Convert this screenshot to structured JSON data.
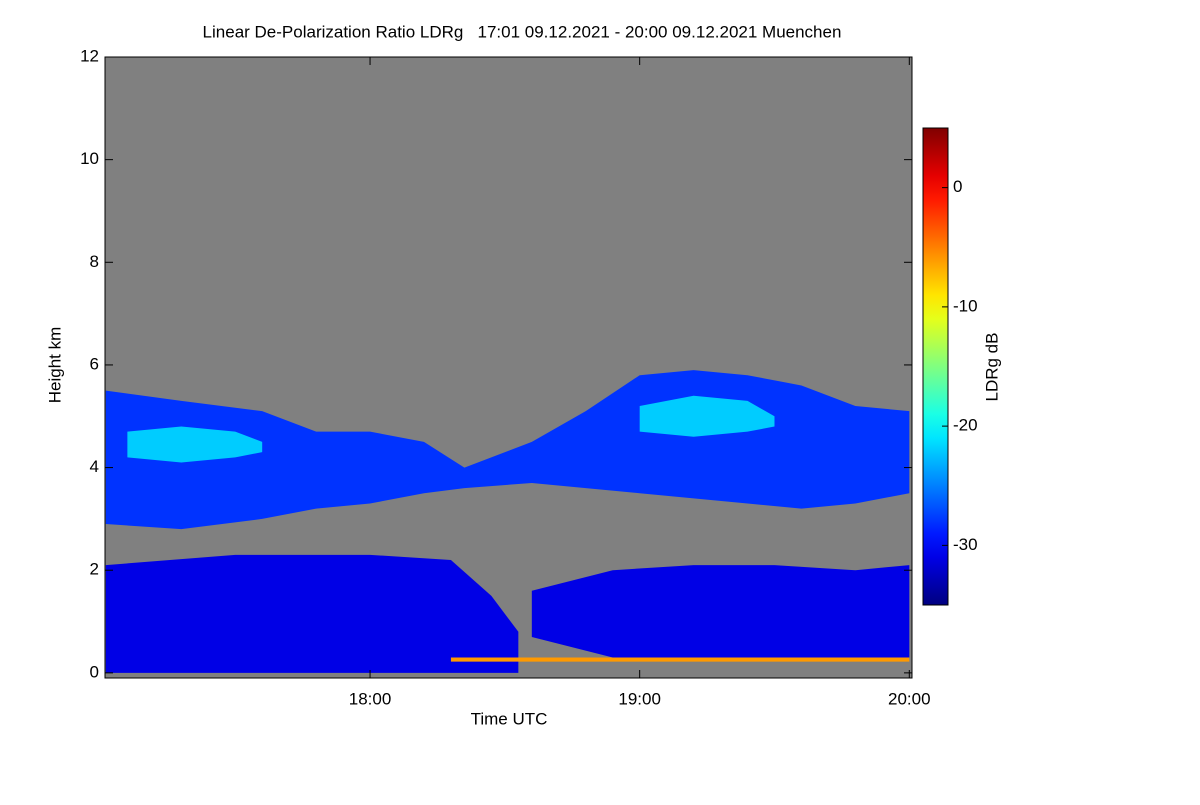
{
  "chart_data": {
    "type": "heatmap",
    "title": "Linear De-Polarization Ratio LDRg   17:01 09.12.2021 - 20:00 09.12.2021 Muenchen",
    "x_label": "Time UTC",
    "y_label": "Height km",
    "colorbar_label": "LDRg dB",
    "xlim": [
      17.017,
      20.01
    ],
    "xticks": [
      {
        "value": 18,
        "label": "18:00"
      },
      {
        "value": 19,
        "label": "19:00"
      },
      {
        "value": 20,
        "label": "20:00"
      }
    ],
    "ylim": [
      -0.1,
      12
    ],
    "yticks": [
      0,
      2,
      4,
      6,
      8,
      10,
      12
    ],
    "clim": [
      -35,
      5
    ],
    "cticks": [
      0,
      -10,
      -20,
      -30
    ],
    "colormap": "jet",
    "background": "#808080",
    "layers": [
      {
        "x": [
          17.02,
          17.3,
          17.6,
          17.8,
          18.0,
          18.2,
          18.35,
          18.6,
          18.8,
          19.0,
          19.2,
          19.4,
          19.6,
          19.8,
          20.0
        ],
        "top": [
          5.5,
          5.3,
          5.1,
          4.7,
          4.7,
          4.5,
          4.0,
          4.5,
          5.1,
          5.8,
          5.9,
          5.8,
          5.6,
          5.2,
          5.1
        ],
        "bottom": [
          2.9,
          2.8,
          3.0,
          3.2,
          3.3,
          3.5,
          3.6,
          3.7,
          3.6,
          3.5,
          3.4,
          3.3,
          3.2,
          3.3,
          3.5
        ],
        "value": -28
      },
      {
        "x": [
          17.1,
          17.3,
          17.5,
          17.6
        ],
        "top": [
          4.7,
          4.8,
          4.7,
          4.5
        ],
        "bottom": [
          4.2,
          4.1,
          4.2,
          4.3
        ],
        "value": -22
      },
      {
        "x": [
          19.0,
          19.2,
          19.4,
          19.5
        ],
        "top": [
          5.2,
          5.4,
          5.3,
          5.0
        ],
        "bottom": [
          4.7,
          4.6,
          4.7,
          4.8
        ],
        "value": -22
      },
      {
        "x": [
          17.02,
          17.5,
          18.0,
          18.3,
          18.45,
          18.55
        ],
        "top": [
          2.1,
          2.3,
          2.3,
          2.2,
          1.5,
          0.8
        ],
        "bottom": [
          0,
          0,
          0,
          0,
          0,
          0
        ],
        "value": -31
      },
      {
        "x": [
          18.6,
          18.9,
          19.2,
          19.5,
          19.8,
          20.0
        ],
        "top": [
          1.6,
          2.0,
          2.1,
          2.1,
          2.0,
          2.1
        ],
        "bottom": [
          0.7,
          0.3,
          0.3,
          0.3,
          0.3,
          0.3
        ],
        "value": -31
      },
      {
        "x": [
          18.3,
          20.0
        ],
        "top": [
          0.3,
          0.3
        ],
        "bottom": [
          0.22,
          0.22
        ],
        "value": -6
      }
    ]
  }
}
